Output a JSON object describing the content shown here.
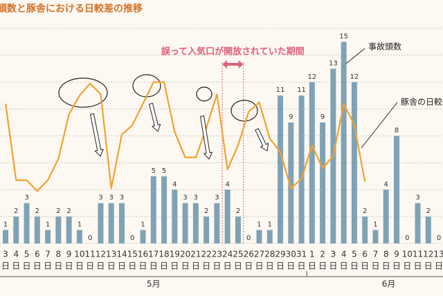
{
  "chart_data": {
    "type": "bar",
    "title": "頭数と豚舎における日較差の推移",
    "categories": [
      "3",
      "4",
      "5",
      "6",
      "7",
      "8",
      "9",
      "10",
      "11",
      "12",
      "13",
      "14",
      "15",
      "16",
      "17",
      "18",
      "19",
      "20",
      "21",
      "22",
      "23",
      "24",
      "25",
      "26",
      "27",
      "28",
      "29",
      "30",
      "31",
      "1",
      "2",
      "3",
      "4",
      "5",
      "6",
      "7",
      "8",
      "9",
      "10",
      "11",
      "12",
      "13"
    ],
    "day_unit": "日",
    "months": [
      {
        "label": "5月",
        "from": 0,
        "to": 28
      },
      {
        "label": "6月",
        "from": 29,
        "to": 41
      }
    ],
    "ylim": [
      0,
      16
    ],
    "yticks": [
      0,
      2,
      4,
      6,
      8,
      10,
      12,
      14,
      16
    ],
    "grid": true,
    "y2lim": [
      0,
      16
    ],
    "series": [
      {
        "name": "事故頭数",
        "type": "bar",
        "color": "#7fa2b6",
        "values": [
          1,
          2,
          3,
          2,
          1,
          2,
          2,
          1,
          0,
          3,
          3,
          3,
          0,
          1,
          5,
          5,
          4,
          3,
          3,
          2,
          3,
          4,
          2,
          0,
          1,
          1,
          11,
          9,
          11,
          12,
          9,
          13,
          15,
          12,
          2,
          1,
          4,
          8,
          0,
          3,
          2,
          0
        ]
      },
      {
        "name": "豚舎の日較差",
        "type": "line",
        "axis": "y2",
        "color": "#f2a12e",
        "values": [
          10.4,
          4.7,
          4.7,
          3.9,
          4.7,
          6.3,
          9.6,
          11.0,
          11.9,
          11.1,
          4.1,
          8.1,
          8.8,
          10.4,
          12.0,
          12.0,
          8.3,
          6.4,
          6.4,
          8.6,
          11.1,
          5.5,
          7.3,
          9.8,
          10.5,
          7.8,
          6.8,
          4.1,
          4.8,
          7.3,
          5.6,
          6.5,
          10.4,
          8.8,
          4.6,
          null,
          null,
          null,
          null,
          null,
          null,
          null
        ]
      }
    ],
    "annotation": {
      "text": "誤って入気口が開放されていた期間",
      "from": 20,
      "to": 22
    }
  }
}
